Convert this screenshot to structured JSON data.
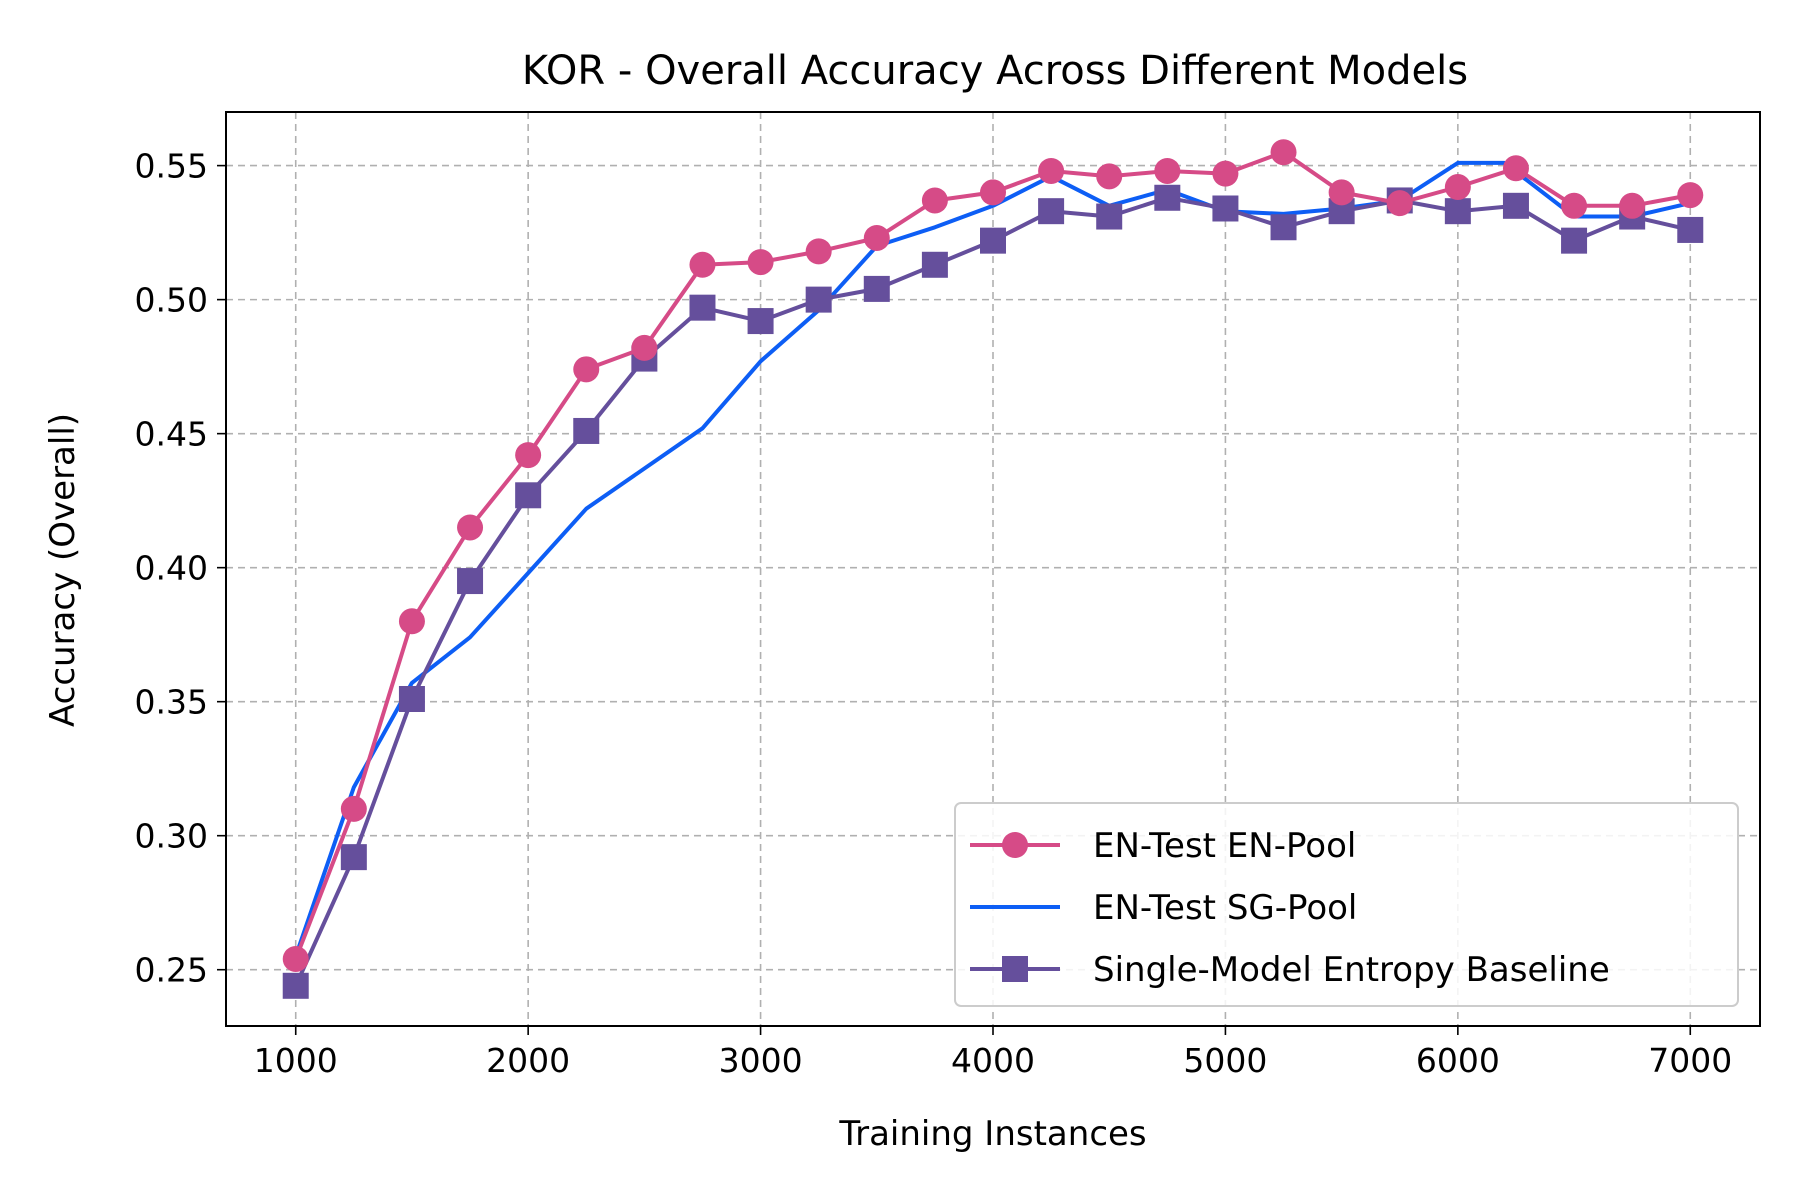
{
  "chart_data": {
    "type": "line",
    "title": "KOR - Overall Accuracy Across Different Models",
    "xlabel": "Training Instances",
    "ylabel": "Accuracy (Overall)",
    "xlim": [
      700,
      7300
    ],
    "ylim": [
      0.229,
      0.57
    ],
    "xticks": [
      1000,
      2000,
      3000,
      4000,
      5000,
      6000,
      7000
    ],
    "xtick_labels": [
      "1000",
      "2000",
      "3000",
      "4000",
      "5000",
      "6000",
      "7000"
    ],
    "yticks": [
      0.25,
      0.3,
      0.35,
      0.4,
      0.45,
      0.5,
      0.55
    ],
    "ytick_labels": [
      "0.25",
      "0.30",
      "0.35",
      "0.40",
      "0.45",
      "0.50",
      "0.55"
    ],
    "grid": true,
    "legend_position": "lower right",
    "x": [
      1000,
      1250,
      1500,
      1750,
      2000,
      2250,
      2500,
      2750,
      3000,
      3250,
      3500,
      3750,
      4000,
      4250,
      4500,
      4750,
      5000,
      5250,
      5500,
      5750,
      6000,
      6250,
      6500,
      6750,
      7000
    ],
    "series": [
      {
        "name": "EN-Test EN-Pool",
        "color": "#d64b87",
        "marker": "circle",
        "values": [
          0.254,
          0.31,
          0.38,
          0.415,
          0.442,
          0.474,
          0.482,
          0.513,
          0.514,
          0.518,
          0.523,
          0.537,
          0.54,
          0.548,
          0.546,
          0.548,
          0.547,
          0.555,
          0.54,
          0.536,
          0.542,
          0.549,
          0.535,
          0.535,
          0.539
        ]
      },
      {
        "name": "EN-Test SG-Pool",
        "color": "#0d5ef5",
        "marker": "none",
        "x": [
          1000,
          1250,
          1500,
          1750,
          2000,
          2250,
          2500,
          2750,
          3000,
          3250,
          3500,
          3750,
          4000,
          4250,
          4500,
          4750,
          5000,
          5250,
          5500,
          5750,
          6000,
          6200,
          6500,
          6750,
          7000
        ],
        "values": [
          0.255,
          0.318,
          0.357,
          0.374,
          0.398,
          0.422,
          0.437,
          0.452,
          0.477,
          0.496,
          0.52,
          0.527,
          0.535,
          0.546,
          0.535,
          0.541,
          0.533,
          0.532,
          0.534,
          0.537,
          0.551,
          0.551,
          0.531,
          0.531,
          0.536
        ]
      },
      {
        "name": "Single-Model Entropy Baseline",
        "color": "#654f9c",
        "marker": "square",
        "values": [
          0.244,
          0.292,
          0.351,
          0.395,
          0.427,
          0.451,
          0.478,
          0.497,
          0.492,
          0.5,
          0.504,
          0.513,
          0.522,
          0.533,
          0.531,
          0.538,
          0.534,
          0.527,
          0.533,
          0.537,
          0.533,
          0.535,
          0.522,
          0.531,
          0.526
        ]
      }
    ]
  }
}
